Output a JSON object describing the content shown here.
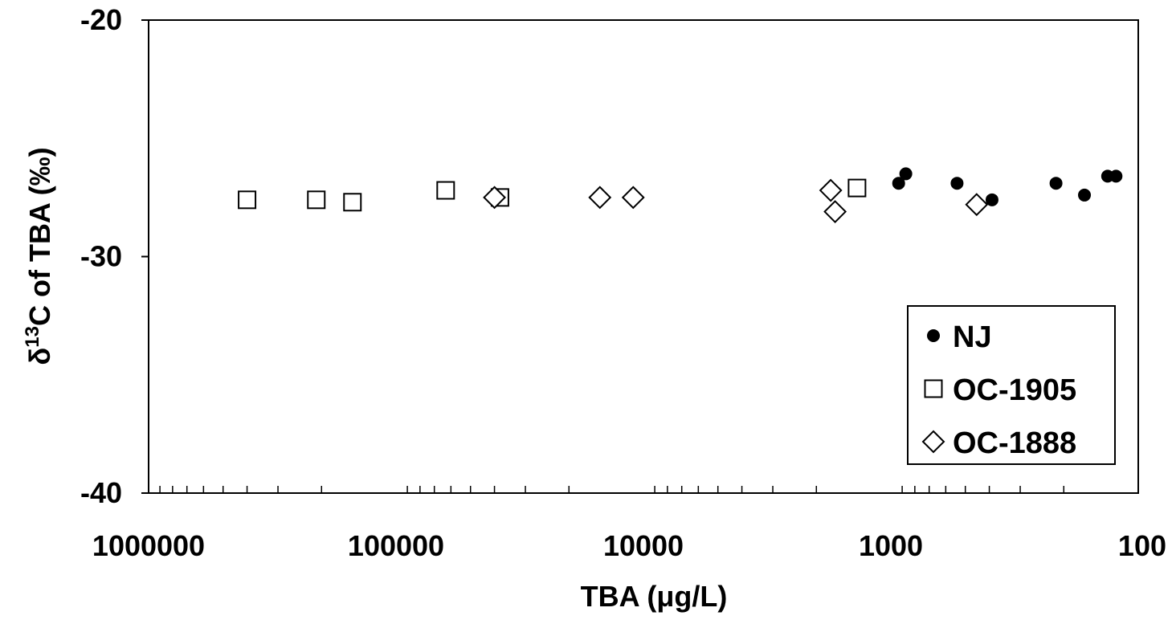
{
  "chart_data": {
    "type": "scatter",
    "title": "",
    "xlabel": "TBA (μg/L)",
    "ylabel_parts": {
      "delta": "δ",
      "sup": "13",
      "rest": "C of TBA (‰)"
    },
    "x_scale": "log",
    "x_reversed": true,
    "xlim": [
      1000000,
      100
    ],
    "ylim": [
      -40,
      -20
    ],
    "x_ticks": [
      {
        "value": 1000000,
        "label": "1000000"
      },
      {
        "value": 100000,
        "label": "100000"
      },
      {
        "value": 10000,
        "label": "10000"
      },
      {
        "value": 1000,
        "label": "1000"
      },
      {
        "value": 100,
        "label": "100"
      }
    ],
    "y_ticks": [
      {
        "value": -20,
        "label": "-20"
      },
      {
        "value": -30,
        "label": "-30"
      },
      {
        "value": -40,
        "label": "-40"
      }
    ],
    "grid": false,
    "legend_position": "bottom-right",
    "series": [
      {
        "name": "NJ",
        "marker": "filled-circle",
        "color": "#000000",
        "points": [
          {
            "x": 930,
            "y": -26.9
          },
          {
            "x": 870,
            "y": -26.5
          },
          {
            "x": 540,
            "y": -26.9
          },
          {
            "x": 390,
            "y": -27.6
          },
          {
            "x": 215,
            "y": -26.9
          },
          {
            "x": 165,
            "y": -27.4
          },
          {
            "x": 133,
            "y": -26.6
          },
          {
            "x": 123,
            "y": -26.6
          }
        ]
      },
      {
        "name": "OC-1905",
        "marker": "open-square",
        "color": "#000000",
        "points": [
          {
            "x": 400000,
            "y": -27.6
          },
          {
            "x": 210000,
            "y": -27.6
          },
          {
            "x": 150000,
            "y": -27.7
          },
          {
            "x": 63000,
            "y": -27.2
          },
          {
            "x": 38000,
            "y": -27.5
          },
          {
            "x": 1370,
            "y": -27.1
          }
        ]
      },
      {
        "name": "OC-1888",
        "marker": "open-diamond",
        "color": "#000000",
        "points": [
          {
            "x": 40000,
            "y": -27.5
          },
          {
            "x": 15000,
            "y": -27.5
          },
          {
            "x": 11000,
            "y": -27.5
          },
          {
            "x": 1750,
            "y": -27.2
          },
          {
            "x": 1680,
            "y": -28.1
          },
          {
            "x": 450,
            "y": -27.8
          }
        ]
      }
    ]
  }
}
